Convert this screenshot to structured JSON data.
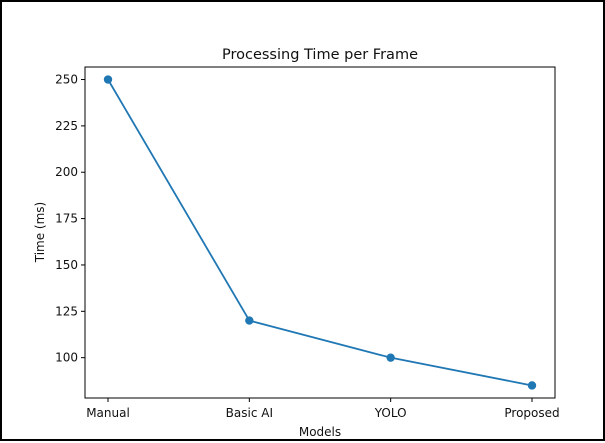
{
  "chart_data": {
    "type": "line",
    "title": "Processing Time per Frame",
    "xlabel": "Models",
    "ylabel": "Time (ms)",
    "categories": [
      "Manual",
      "Basic AI",
      "YOLO",
      "Proposed"
    ],
    "series": [
      {
        "values": [
          250,
          120,
          100,
          85
        ],
        "color": "#1f77b4"
      }
    ],
    "yticks": [
      100,
      125,
      150,
      175,
      200,
      225,
      250
    ],
    "ylim": [
      78.25,
      256.75
    ],
    "grid": false,
    "legend": false,
    "markers": "circle"
  }
}
